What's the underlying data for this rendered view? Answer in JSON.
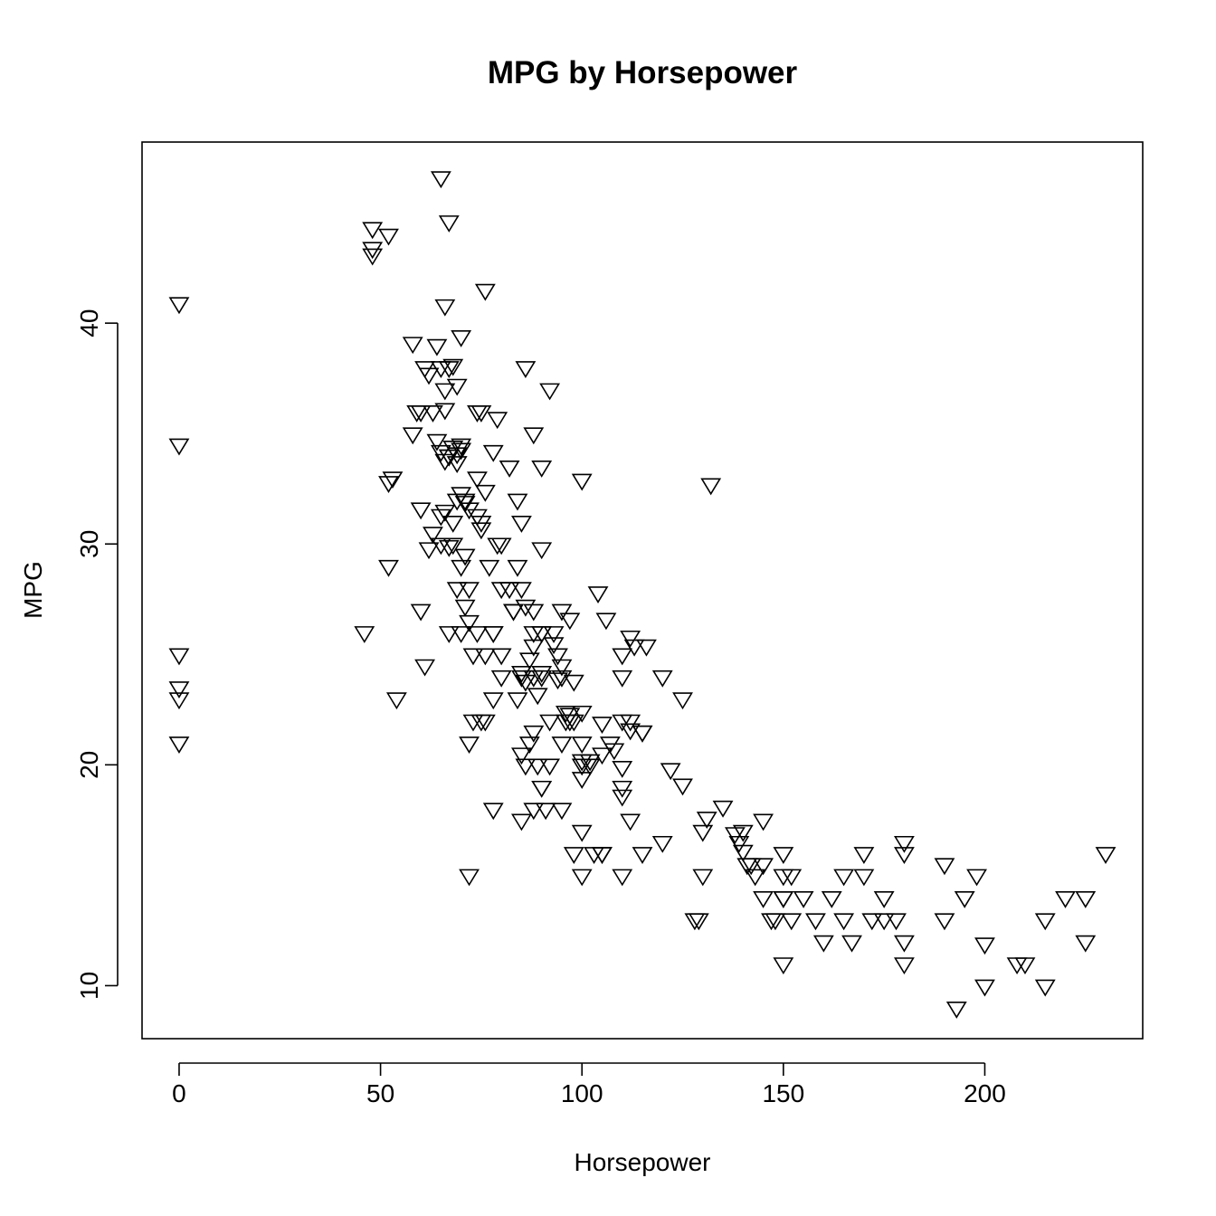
{
  "chart_data": {
    "type": "scatter",
    "title": "MPG by Horsepower",
    "xlabel": "Horsepower",
    "ylabel": "MPG",
    "xlim": [
      -9.2,
      239.2
    ],
    "ylim": [
      7.6,
      48.2
    ],
    "xticks": [
      0,
      50,
      100,
      150,
      200
    ],
    "yticks": [
      10,
      20,
      30,
      40
    ],
    "grid": false,
    "marker": "triangle-down",
    "x": [
      0,
      0,
      0,
      0,
      0,
      0,
      48,
      48,
      48,
      52,
      65,
      67,
      66,
      76,
      70,
      58,
      64,
      61,
      62,
      65,
      66,
      67,
      68,
      69,
      66,
      63,
      60,
      59,
      58,
      64,
      67,
      70,
      69,
      74,
      75,
      79,
      82,
      86,
      88,
      92,
      65,
      66,
      67,
      68,
      69,
      70,
      71,
      72,
      74,
      76,
      78,
      84,
      90,
      100,
      53,
      52,
      68,
      69,
      70,
      71,
      65,
      66,
      74,
      75,
      80,
      85,
      132,
      60,
      62,
      63,
      65,
      67,
      68,
      70,
      71,
      72,
      75,
      77,
      79,
      82,
      84,
      86,
      61,
      70,
      74,
      78,
      80,
      83,
      85,
      90,
      93,
      94,
      52,
      46,
      60,
      67,
      69,
      71,
      72,
      73,
      76,
      78,
      80,
      84,
      86,
      88,
      90,
      95,
      97,
      100,
      54,
      72,
      73,
      75,
      76,
      78,
      80,
      83,
      85,
      88,
      90,
      93,
      95,
      97,
      98,
      85,
      86,
      87,
      88,
      89,
      90,
      91,
      92,
      95,
      96,
      100,
      102,
      105,
      107,
      110,
      112,
      115,
      72,
      78,
      85,
      88,
      90,
      95,
      100,
      105,
      110,
      115,
      120,
      125,
      98,
      100,
      103,
      105,
      110,
      112,
      115,
      116,
      88,
      90,
      92,
      94,
      96,
      98,
      100,
      102,
      104,
      106,
      110,
      112,
      85,
      87,
      88,
      89,
      90,
      95,
      97,
      110,
      113,
      108,
      112,
      100,
      105,
      110,
      100,
      110,
      120,
      122,
      125,
      130,
      128,
      129,
      130,
      131,
      135,
      138,
      140,
      142,
      145,
      150,
      150,
      152,
      155,
      158,
      165,
      170,
      175,
      180,
      190,
      198,
      200,
      208,
      210,
      215,
      220,
      225,
      230,
      139,
      140,
      141,
      143,
      145,
      147,
      150,
      145,
      148,
      150,
      152,
      160,
      162,
      165,
      167,
      170,
      172,
      175,
      178,
      180,
      180,
      190,
      215,
      225,
      195,
      180,
      150,
      193,
      200
    ],
    "y": [
      40.9,
      34.5,
      25,
      23.5,
      23,
      21,
      44.3,
      43.4,
      43.1,
      44,
      46.6,
      44.6,
      40.8,
      41.5,
      39.4,
      39.1,
      39,
      38,
      37.7,
      38,
      37,
      38,
      38.1,
      37.2,
      36.1,
      36,
      36,
      36,
      35,
      34.7,
      34,
      34.5,
      34.1,
      36,
      36,
      35.7,
      33.5,
      38,
      35,
      37,
      34.2,
      33.8,
      34,
      34.4,
      33.7,
      34.3,
      32,
      31.6,
      33,
      32.4,
      34.2,
      32,
      33.5,
      32.9,
      33,
      32.8,
      31,
      32,
      32.3,
      31.9,
      30,
      31.5,
      31.3,
      31,
      30,
      31,
      32.7,
      27,
      29.8,
      30.5,
      31.3,
      29.9,
      30,
      29,
      29.5,
      28,
      30.7,
      29,
      30,
      28,
      29,
      27.2,
      24.5,
      26,
      26,
      26,
      25,
      27,
      24,
      26,
      25.5,
      25,
      29,
      26,
      31.6,
      26,
      28,
      27.2,
      26.5,
      25,
      25,
      26,
      24,
      23,
      23.8,
      26,
      24,
      24,
      22,
      21,
      23,
      21,
      22,
      22,
      22,
      23,
      28,
      27,
      28,
      27,
      29.8,
      26,
      24.5,
      22.3,
      22,
      20.5,
      20,
      21,
      21.5,
      20,
      19,
      18,
      20,
      21,
      22,
      20,
      20.2,
      20.5,
      21,
      22,
      22,
      21.5,
      15,
      18,
      17.5,
      18,
      19,
      18,
      17,
      16,
      15,
      16,
      24,
      23,
      16,
      15,
      16,
      16,
      19,
      17.5,
      21.5,
      25.4,
      25.4,
      24.2,
      22,
      23.9,
      22.4,
      23.8,
      20.2,
      20,
      27.8,
      26.6,
      25,
      25.8,
      24.2,
      24.8,
      24,
      23.2,
      26,
      27,
      26.6,
      24,
      25.4,
      20.7,
      21.6,
      22.4,
      21.9,
      19.9,
      19.4,
      18.6,
      16.5,
      19.8,
      19.1,
      17,
      13,
      13,
      15,
      17.6,
      18.1,
      16.9,
      16.1,
      15.5,
      15.5,
      16,
      14,
      15,
      14,
      13,
      15,
      16,
      14,
      16,
      15.5,
      15,
      11.9,
      11,
      11,
      13,
      14,
      14,
      16,
      16.5,
      17,
      15.5,
      15,
      14,
      13,
      14,
      17.5,
      13,
      15,
      13,
      12,
      14,
      13,
      12,
      15,
      13,
      13,
      13,
      12,
      11,
      13,
      10,
      12,
      14,
      16.5,
      11,
      9,
      10
    ]
  }
}
